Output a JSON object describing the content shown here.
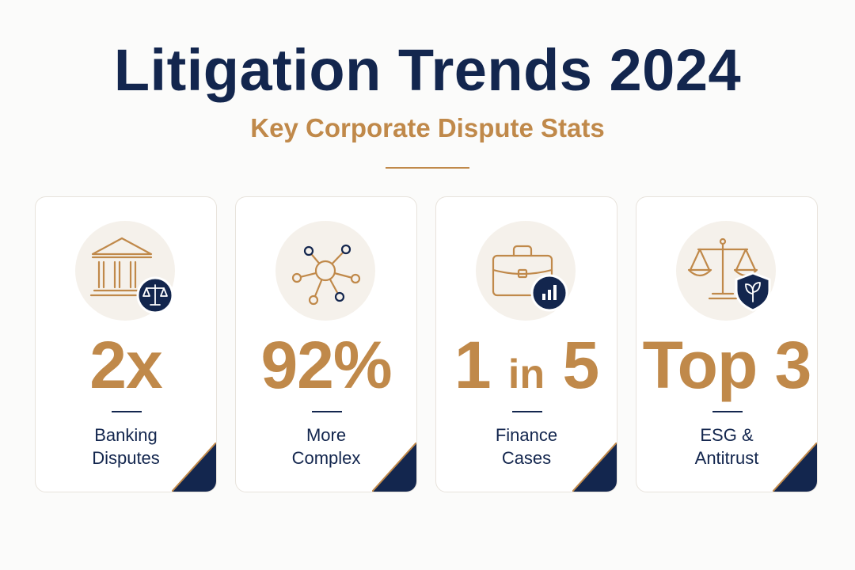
{
  "header": {
    "title": "Litigation Trends 2024",
    "subtitle": "Key Corporate Dispute Stats"
  },
  "colors": {
    "navy": "#13264e",
    "gold": "#c0894a",
    "icon_bg": "#f5f1eb",
    "card_border": "#e8e3dc"
  },
  "cards": [
    {
      "icon": "courthouse-icon",
      "badge_icon": "scales-badge-icon",
      "value": "2x",
      "label_lines": [
        "Banking",
        "Disputes"
      ]
    },
    {
      "icon": "network-nodes-icon",
      "value": "92%",
      "label_lines": [
        "More",
        "Complex"
      ]
    },
    {
      "icon": "briefcase-icon",
      "badge_icon": "bar-chart-badge-icon",
      "value_parts": [
        "1",
        "in",
        "5"
      ],
      "label_lines": [
        "Finance",
        "Cases"
      ]
    },
    {
      "icon": "scales-icon",
      "badge_icon": "leaf-shield-badge-icon",
      "value": "Top 3",
      "label_lines": [
        "ESG &",
        "Antitrust"
      ]
    }
  ]
}
